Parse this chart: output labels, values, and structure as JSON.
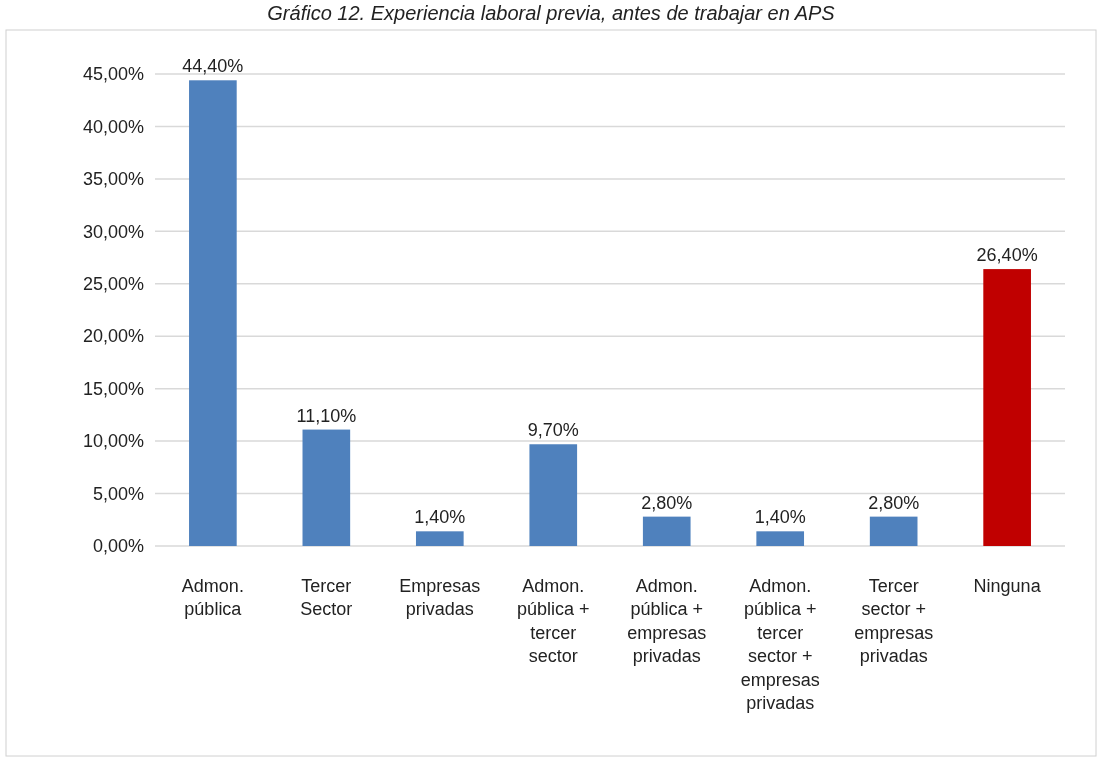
{
  "chart_data": {
    "type": "bar",
    "title": "Gráfico 12. Experiencia laboral previa, antes de trabajar en APS",
    "categories": [
      "Admon. pública",
      "Tercer Sector",
      "Empresas privadas",
      "Admon. pública + tercer sector",
      "Admon. pública + empresas privadas",
      "Admon. pública + tercer sector + empresas privadas",
      "Tercer sector + empresas privadas",
      "Ninguna"
    ],
    "values": [
      44.4,
      11.1,
      1.4,
      9.7,
      2.8,
      1.4,
      2.8,
      26.4
    ],
    "colors": [
      "#4f81bd",
      "#4f81bd",
      "#4f81bd",
      "#4f81bd",
      "#4f81bd",
      "#4f81bd",
      "#4f81bd",
      "#c00000"
    ],
    "value_labels": [
      "44,40%",
      "11,10%",
      "1,40%",
      "9,70%",
      "2,80%",
      "1,40%",
      "2,80%",
      "26,40%"
    ],
    "ylim": [
      0,
      45
    ],
    "yticks": [
      {
        "value": 0,
        "label": "0,00%"
      },
      {
        "value": 5,
        "label": "5,00%"
      },
      {
        "value": 10,
        "label": "10,00%"
      },
      {
        "value": 15,
        "label": "15,00%"
      },
      {
        "value": 20,
        "label": "20,00%"
      },
      {
        "value": 25,
        "label": "25,00%"
      },
      {
        "value": 30,
        "label": "30,00%"
      },
      {
        "value": 35,
        "label": "35,00%"
      },
      {
        "value": 40,
        "label": "40,00%"
      },
      {
        "value": 45,
        "label": "45,00%"
      }
    ],
    "grid": "y"
  }
}
